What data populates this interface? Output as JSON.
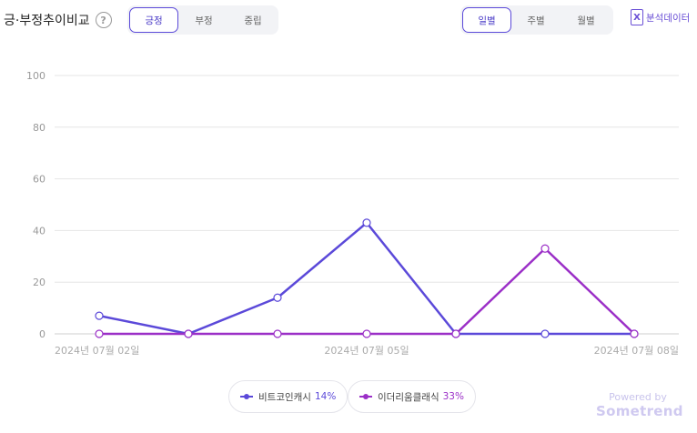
{
  "header": {
    "title": "긍·부정추이비교",
    "help_glyph": "?",
    "sentiment_tabs": [
      "긍정",
      "부정",
      "중립"
    ],
    "period_tabs": [
      "일별",
      "주별",
      "월별"
    ],
    "export_glyph": "X",
    "export_label": "분석데이터"
  },
  "colors": {
    "series1": "#5b49d9",
    "series2": "#9b2fc7",
    "accent": "#5b49d9"
  },
  "chart_data": {
    "type": "line",
    "x": [
      "2024년 07월 02일",
      "2024년 07월 03일",
      "2024년 07월 04일",
      "2024년 07월 05일",
      "2024년 07월 06일",
      "2024년 07월 07일",
      "2024년 07월 08일"
    ],
    "x_tick_labels": [
      "2024년 07월 02일",
      "2024년 07월 05일",
      "2024년 07월 08일"
    ],
    "ylim": [
      0,
      100
    ],
    "yticks": [
      "0",
      "20",
      "40",
      "60",
      "80",
      "100"
    ],
    "grid": true,
    "legend_position": "bottom",
    "series": [
      {
        "name": "비트코인캐시",
        "percent": "14%",
        "values": [
          7,
          0,
          14,
          43,
          0,
          0,
          0
        ]
      },
      {
        "name": "이더리움클래식",
        "percent": "33%",
        "values": [
          0,
          0,
          0,
          0,
          0,
          33,
          0
        ]
      }
    ]
  },
  "branding": {
    "powered": "Powered by",
    "brand": "Sometrend"
  }
}
